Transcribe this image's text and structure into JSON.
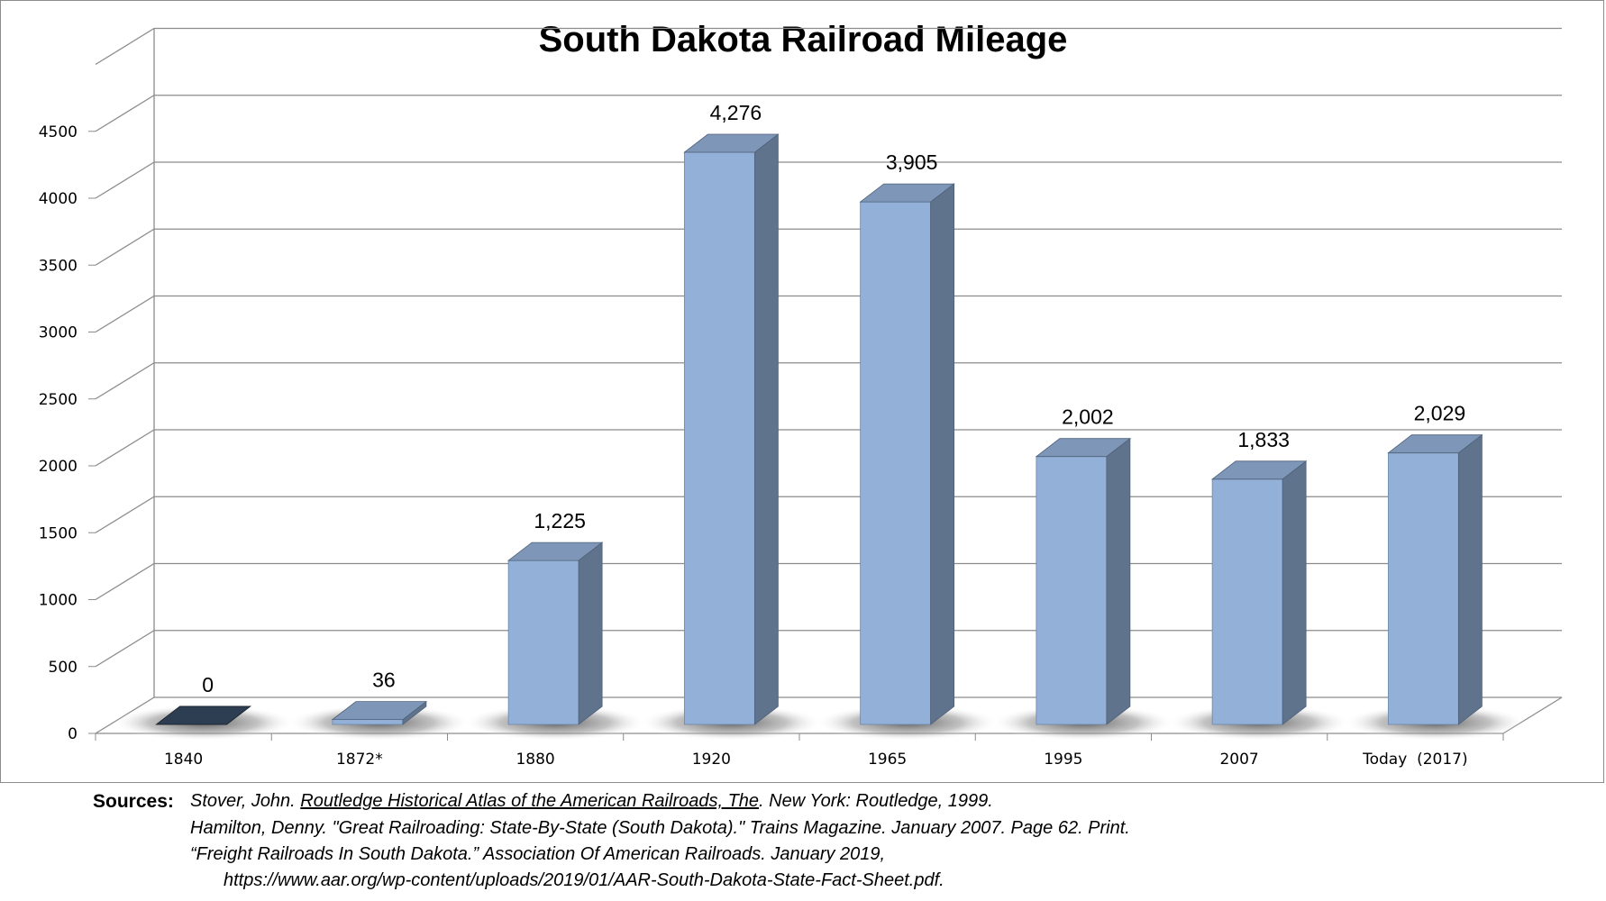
{
  "chart_data": {
    "type": "bar",
    "title": "South Dakota Railroad Mileage",
    "xlabel": "",
    "ylabel": "",
    "categories": [
      "1840",
      "1872*",
      "1880",
      "1920",
      "1965",
      "1995",
      "2007",
      "Today  (2017)"
    ],
    "values": [
      0,
      36,
      1225,
      4276,
      3905,
      2002,
      1833,
      2029
    ],
    "data_labels": [
      "0",
      "36",
      "1,225",
      "4,276",
      "3,905",
      "2,002",
      "1,833",
      "2,029"
    ],
    "yticks": [
      "0",
      "500",
      "1000",
      "1500",
      "2000",
      "2500",
      "3000",
      "3500",
      "4000",
      "4500"
    ],
    "ylim": [
      0,
      5000
    ],
    "grid": true,
    "legend": "none",
    "style": "3d-column",
    "colors": {
      "bar_front": "#92b0d8",
      "bar_side": "#5f738d",
      "bar_top": "#7e96b7",
      "zero_bar": "#2e3e52",
      "grid": "#8c8c8c"
    }
  },
  "sources": {
    "label": "Sources:",
    "line1_author": "Stover, John. ",
    "line1_title": "Routledge Historical Atlas of the American Railroads, The",
    "line1_rest": ". New York: Routledge, 1999.",
    "line2": "Hamilton, Denny. \"Great Railroading: State-By-State (South Dakota).\" Trains Magazine. January 2007. Page 62. Print.",
    "line3": "“Freight Railroads In South Dakota.” Association Of American Railroads. January 2019,",
    "line4": "https://www.aar.org/wp-content/uploads/2019/01/AAR-South-Dakota-State-Fact-Sheet.pdf."
  }
}
